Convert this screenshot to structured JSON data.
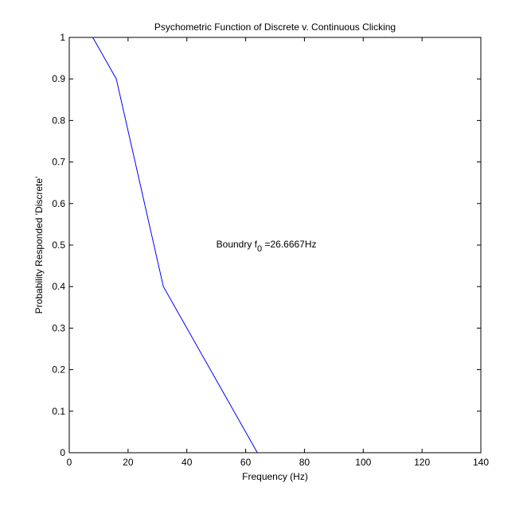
{
  "chart_data": {
    "type": "line",
    "title": "Psychometric Function of Discrete v. Continuous Clicking",
    "xlabel": "Frequency (Hz)",
    "ylabel": "Probability Responded 'Discrete'",
    "xlim": [
      0,
      140
    ],
    "ylim": [
      0,
      1
    ],
    "xticks": [
      0,
      20,
      40,
      60,
      80,
      100,
      120,
      140
    ],
    "yticks": [
      0,
      0.1,
      0.2,
      0.3,
      0.4,
      0.5,
      0.6,
      0.7,
      0.8,
      0.9,
      1
    ],
    "grid": false,
    "line_color": "#0000ff",
    "series": [
      {
        "x": [
          8,
          16,
          32,
          64
        ],
        "y": [
          1.0,
          0.9,
          0.4,
          0.0
        ]
      }
    ],
    "annotation": {
      "prefix": "Boundry f",
      "subscript": "0",
      "suffix": " =26.6667Hz",
      "x": 50,
      "y": 0.5
    }
  }
}
